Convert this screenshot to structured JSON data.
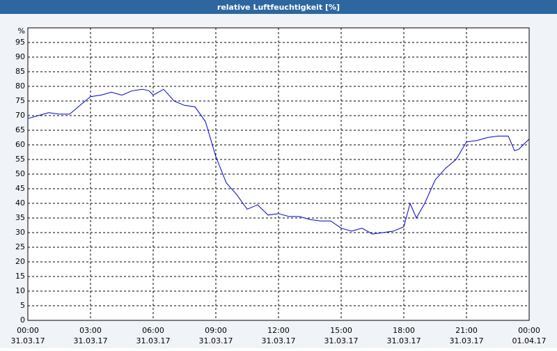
{
  "chart_data": {
    "type": "line",
    "title": "relative Luftfeuchtigkeit [%]",
    "y_label": "%",
    "x": [
      0,
      0.5,
      1,
      1.5,
      2,
      2.5,
      3,
      3.5,
      4,
      4.5,
      5,
      5.5,
      5.8,
      6,
      6.5,
      7,
      7.5,
      8,
      8.5,
      9,
      9.5,
      10,
      10.5,
      11,
      11.5,
      12,
      12.5,
      13,
      13.5,
      14,
      14.5,
      15,
      15.5,
      16,
      16.5,
      17,
      17.5,
      18,
      18.3,
      18.6,
      19,
      19.5,
      20,
      20.5,
      21,
      21.5,
      22,
      22.5,
      23,
      23.3,
      23.5,
      24
    ],
    "series": [
      {
        "name": "relative Luftfeuchtigkeit",
        "color": "#0000cc",
        "values": [
          69,
          70,
          71,
          70.5,
          70.5,
          73.5,
          76.5,
          77,
          78,
          77,
          78.5,
          79,
          78.5,
          77,
          79,
          75,
          73.5,
          73,
          68,
          56,
          47,
          43,
          38,
          39.5,
          36,
          36.5,
          35.5,
          35.5,
          34.5,
          34,
          34,
          31.5,
          30.5,
          31.5,
          29.5,
          30,
          30.5,
          32,
          40,
          35,
          40,
          48,
          52,
          55,
          61,
          61.5,
          62.5,
          63,
          63,
          58,
          58.5,
          62
        ]
      }
    ],
    "xlim": [
      0,
      24
    ],
    "xticks": [
      {
        "value": 0,
        "label": "00:00",
        "date": "31.03.17"
      },
      {
        "value": 3,
        "label": "03:00",
        "date": "31.03.17"
      },
      {
        "value": 6,
        "label": "06:00",
        "date": "31.03.17"
      },
      {
        "value": 9,
        "label": "09:00",
        "date": "31.03.17"
      },
      {
        "value": 12,
        "label": "12:00",
        "date": "31.03.17"
      },
      {
        "value": 15,
        "label": "15:00",
        "date": "31.03.17"
      },
      {
        "value": 18,
        "label": "18:00",
        "date": "31.03.17"
      },
      {
        "value": 21,
        "label": "21:00",
        "date": "31.03.17"
      },
      {
        "value": 24,
        "label": "00:00",
        "date": "01.04.17"
      }
    ],
    "ylim": [
      0,
      100
    ],
    "yticks": [
      0,
      5,
      10,
      15,
      20,
      25,
      30,
      35,
      40,
      45,
      50,
      55,
      60,
      65,
      70,
      75,
      80,
      85,
      90,
      95
    ],
    "grid": true
  }
}
